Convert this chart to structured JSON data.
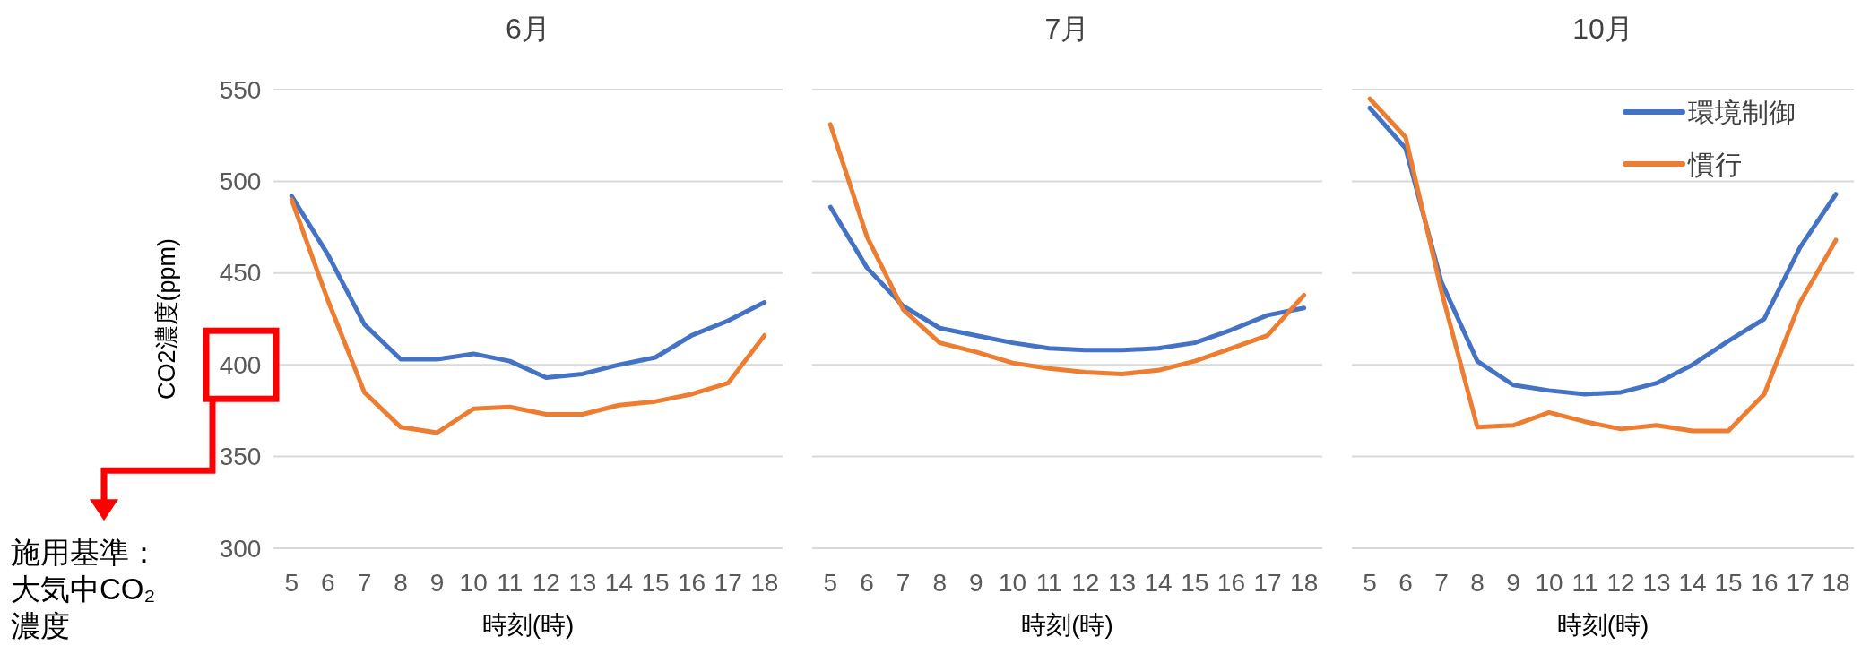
{
  "chart_data": [
    {
      "type": "line",
      "title": "6月",
      "xlabel": "時刻(時)",
      "ylabel": "CO2濃度(ppm)",
      "categories": [
        "5",
        "6",
        "7",
        "8",
        "9",
        "10",
        "11",
        "12",
        "13",
        "14",
        "15",
        "16",
        "17",
        "18"
      ],
      "series": [
        {
          "color": "#4472c4",
          "values": [
            492,
            460,
            422,
            403,
            403,
            406,
            402,
            393,
            395,
            400,
            404,
            416,
            424,
            434
          ]
        },
        {
          "color": "#ed7d31",
          "values": [
            490,
            435,
            385,
            366,
            363,
            376,
            377,
            373,
            373,
            378,
            380,
            384,
            390,
            416
          ]
        }
      ],
      "ylim": [
        300,
        550
      ],
      "yticks": [
        300,
        350,
        400,
        450,
        500,
        550
      ],
      "grid": "y",
      "legend": false,
      "annotations": [
        "施用基準：大気中CO₂濃度"
      ]
    },
    {
      "type": "line",
      "title": "7月",
      "xlabel": "時刻(時)",
      "categories": [
        "5",
        "6",
        "7",
        "8",
        "9",
        "10",
        "11",
        "12",
        "13",
        "14",
        "15",
        "16",
        "17",
        "18"
      ],
      "series": [
        {
          "color": "#4472c4",
          "values": [
            486,
            453,
            432,
            420,
            416,
            412,
            409,
            408,
            408,
            409,
            412,
            419,
            427,
            431
          ]
        },
        {
          "color": "#ed7d31",
          "values": [
            531,
            470,
            430,
            412,
            407,
            401,
            398,
            396,
            395,
            397,
            402,
            409,
            416,
            438
          ]
        }
      ],
      "ylim": [
        300,
        550
      ],
      "yticks": [
        300,
        350,
        400,
        450,
        500,
        550
      ],
      "grid": "y",
      "legend": false,
      "tick_labels": "x"
    },
    {
      "type": "line",
      "title": "10月",
      "xlabel": "時刻(時)",
      "categories": [
        "5",
        "6",
        "7",
        "8",
        "9",
        "10",
        "11",
        "12",
        "13",
        "14",
        "15",
        "16",
        "17",
        "18"
      ],
      "series": [
        {
          "name": "環境制御",
          "color": "#4472c4",
          "values": [
            540,
            518,
            445,
            402,
            389,
            386,
            384,
            385,
            390,
            400,
            413,
            425,
            464,
            493
          ]
        },
        {
          "name": "慣行",
          "color": "#ed7d31",
          "values": [
            545,
            524,
            440,
            366,
            367,
            374,
            369,
            365,
            367,
            364,
            364,
            384,
            434,
            468
          ]
        }
      ],
      "ylim": [
        300,
        550
      ],
      "yticks": [
        300,
        350,
        400,
        450,
        500,
        550
      ],
      "grid": "y",
      "legend": "top right",
      "tick_labels": "x"
    }
  ]
}
